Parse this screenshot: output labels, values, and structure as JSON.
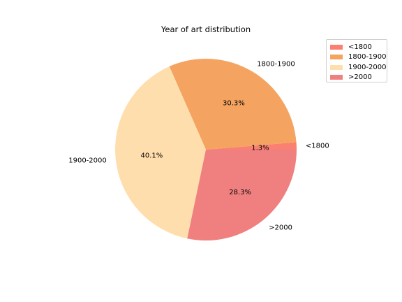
{
  "chart_data": {
    "type": "pie",
    "title": "Year of art distribution",
    "categories": [
      "<1800",
      "1800-1900",
      "1900-2000",
      ">2000"
    ],
    "values": [
      1.3,
      30.3,
      40.1,
      28.3
    ],
    "pct_labels": [
      "1.3%",
      "30.3%",
      "40.1%",
      "28.3%"
    ],
    "colors": [
      "#fa8072",
      "#f4a460",
      "#ffdead",
      "#f08080"
    ],
    "start_angle_deg": 0,
    "direction": "counterclockwise",
    "legend_position": "upper right"
  }
}
